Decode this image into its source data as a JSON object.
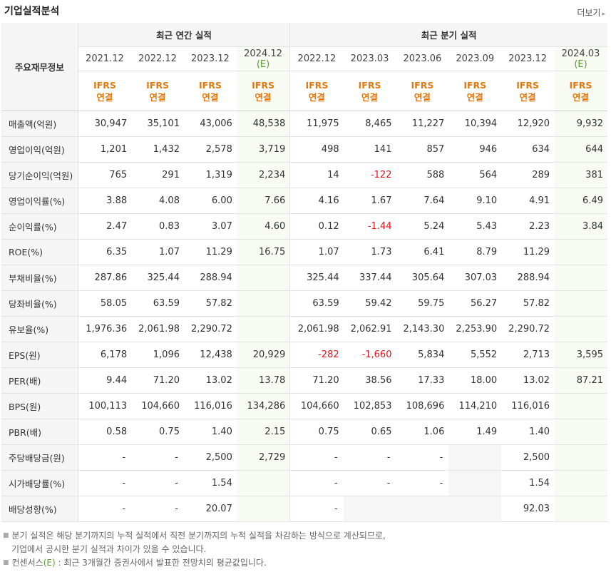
{
  "header": {
    "title": "기업실적분석",
    "more_label": "더보기",
    "more_icon": "▸"
  },
  "table": {
    "row_header_label": "주요재무정보",
    "annual_group_label": "최근 연간 실적",
    "quarter_group_label": "최근 분기 실적",
    "periods": [
      {
        "date": "2021.12",
        "est": "",
        "std": "IFRS",
        "type": "연결"
      },
      {
        "date": "2022.12",
        "est": "",
        "std": "IFRS",
        "type": "연결"
      },
      {
        "date": "2023.12",
        "est": "",
        "std": "IFRS",
        "type": "연결"
      },
      {
        "date": "2024.12",
        "est": "(E)",
        "std": "IFRS",
        "type": "연결"
      },
      {
        "date": "2022.12",
        "est": "",
        "std": "IFRS",
        "type": "연결"
      },
      {
        "date": "2023.03",
        "est": "",
        "std": "IFRS",
        "type": "연결"
      },
      {
        "date": "2023.06",
        "est": "",
        "std": "IFRS",
        "type": "연결"
      },
      {
        "date": "2023.09",
        "est": "",
        "std": "IFRS",
        "type": "연결"
      },
      {
        "date": "2023.12",
        "est": "",
        "std": "IFRS",
        "type": "연결"
      },
      {
        "date": "2024.03",
        "est": "(E)",
        "std": "IFRS",
        "type": "연결"
      }
    ],
    "rows": [
      {
        "label": "매출액(억원)",
        "values": [
          "30,947",
          "35,101",
          "43,006",
          "48,538",
          "11,975",
          "8,465",
          "11,227",
          "10,394",
          "12,920",
          "9,932"
        ]
      },
      {
        "label": "영업이익(억원)",
        "values": [
          "1,201",
          "1,432",
          "2,578",
          "3,719",
          "498",
          "141",
          "857",
          "946",
          "634",
          "644"
        ]
      },
      {
        "label": "당기순이익(억원)",
        "values": [
          "765",
          "291",
          "1,319",
          "2,234",
          "14",
          "-122",
          "588",
          "564",
          "289",
          "381"
        ]
      },
      {
        "label": "영업이익률(%)",
        "values": [
          "3.88",
          "4.08",
          "6.00",
          "7.66",
          "4.16",
          "1.67",
          "7.64",
          "9.10",
          "4.91",
          "6.49"
        ]
      },
      {
        "label": "순이익률(%)",
        "values": [
          "2.47",
          "0.83",
          "3.07",
          "4.60",
          "0.12",
          "-1.44",
          "5.24",
          "5.43",
          "2.23",
          "3.84"
        ]
      },
      {
        "label": "ROE(%)",
        "values": [
          "6.35",
          "1.07",
          "11.29",
          "16.75",
          "1.07",
          "1.73",
          "6.41",
          "8.79",
          "11.29",
          ""
        ]
      },
      {
        "label": "부채비율(%)",
        "values": [
          "287.86",
          "325.44",
          "288.94",
          "",
          "325.44",
          "337.44",
          "305.64",
          "307.03",
          "288.94",
          ""
        ]
      },
      {
        "label": "당좌비율(%)",
        "values": [
          "58.05",
          "63.59",
          "57.82",
          "",
          "63.59",
          "59.42",
          "59.75",
          "56.27",
          "57.82",
          ""
        ]
      },
      {
        "label": "유보율(%)",
        "values": [
          "1,976.36",
          "2,061.98",
          "2,290.72",
          "",
          "2,061.98",
          "2,062.91",
          "2,143.30",
          "2,253.90",
          "2,290.72",
          ""
        ]
      },
      {
        "label": "EPS(원)",
        "values": [
          "6,178",
          "1,096",
          "12,438",
          "20,929",
          "-282",
          "-1,660",
          "5,834",
          "5,552",
          "2,713",
          "3,595"
        ]
      },
      {
        "label": "PER(배)",
        "values": [
          "9.44",
          "71.20",
          "13.02",
          "13.78",
          "71.20",
          "38.56",
          "17.33",
          "18.00",
          "13.02",
          "87.21"
        ]
      },
      {
        "label": "BPS(원)",
        "values": [
          "100,113",
          "104,660",
          "116,016",
          "134,286",
          "104,660",
          "102,853",
          "108,696",
          "114,210",
          "116,016",
          ""
        ]
      },
      {
        "label": "PBR(배)",
        "values": [
          "0.58",
          "0.75",
          "1.40",
          "2.15",
          "0.75",
          "0.65",
          "1.06",
          "1.49",
          "1.40",
          ""
        ]
      },
      {
        "label": "주당배당금(원)",
        "values": [
          "-",
          "-",
          "2,500",
          "2,729",
          "-",
          "-",
          "-",
          "",
          "2,500",
          ""
        ]
      },
      {
        "label": "시가배당률(%)",
        "values": [
          "-",
          "-",
          "1.54",
          "",
          "-",
          "-",
          "-",
          "",
          "1.54",
          ""
        ]
      },
      {
        "label": "배당성향(%)",
        "values": [
          "-",
          "-",
          "20.07",
          "",
          "-",
          "",
          "",
          "",
          "92.03",
          ""
        ]
      }
    ]
  },
  "notes": {
    "line1": "분기 실적은 해당 분기까지의 누적 실적에서 직전 분기까지의 누적 실적을 차감하는 방식으로 계산되므로,",
    "line2": "기업에서 공시한 분기 실적과 차이가 있을 수 있습니다.",
    "line3_prefix": "컨센서스",
    "line3_em": "(E)",
    "line3_suffix": " : 최근 3개월간 증권사에서 발표한 전망치의 평균값입니다."
  }
}
